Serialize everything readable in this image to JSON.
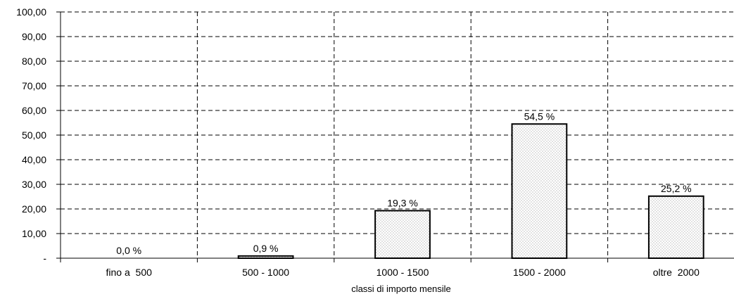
{
  "chart_data": {
    "type": "bar",
    "categories": [
      "fino a  500",
      "500 - 1000",
      "1000 - 1500",
      "1500 - 2000",
      "oltre  2000"
    ],
    "values": [
      0.0,
      0.9,
      19.3,
      54.5,
      25.2
    ],
    "data_labels": [
      "0,0 %",
      "0,9 %",
      "19,3 %",
      "54,5 %",
      "25,2 %"
    ],
    "title": "",
    "xlabel": "classi di importo mensile",
    "ylabel": "",
    "ylim": [
      0,
      100
    ],
    "y_ticks": [
      {
        "value": 0,
        "label": "-"
      },
      {
        "value": 10,
        "label": "10,00"
      },
      {
        "value": 20,
        "label": "20,00"
      },
      {
        "value": 30,
        "label": "30,00"
      },
      {
        "value": 40,
        "label": "40,00"
      },
      {
        "value": 50,
        "label": "50,00"
      },
      {
        "value": 60,
        "label": "60,00"
      },
      {
        "value": 70,
        "label": "70,00"
      },
      {
        "value": 80,
        "label": "80,00"
      },
      {
        "value": 90,
        "label": "90,00"
      },
      {
        "value": 100,
        "label": "100,00"
      }
    ],
    "grid": true,
    "legend": "none",
    "bar_fill": "#ffffff",
    "bar_pattern_dot_color": "#9a9a9a",
    "bar_stroke": "#000000"
  }
}
